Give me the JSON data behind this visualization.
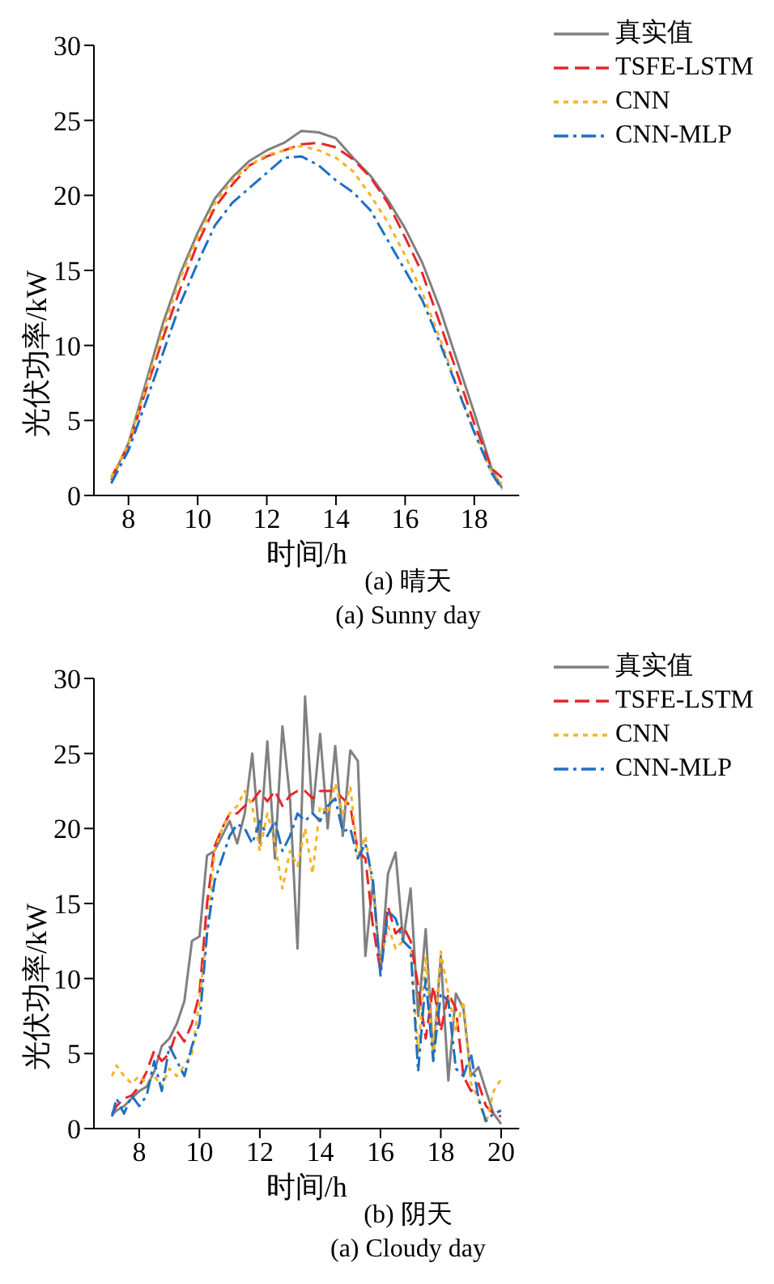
{
  "chart_data": [
    {
      "type": "line",
      "xlabel": "时间/h",
      "ylabel": "光伏功率/kW",
      "annotations": [
        "(a) 晴天",
        "(a) Sunny day"
      ],
      "xlim": [
        7,
        19.3
      ],
      "xticks": [
        8,
        10,
        12,
        14,
        16,
        18
      ],
      "ylim": [
        0,
        30
      ],
      "yticks": [
        0,
        5,
        10,
        15,
        20,
        25,
        30
      ],
      "grid": false,
      "legend": "top right",
      "marker": "none",
      "x": [
        7.5,
        8,
        8.5,
        9,
        9.5,
        10,
        10.5,
        11,
        11.5,
        12,
        12.5,
        13,
        13.5,
        14,
        14.5,
        15,
        15.5,
        16,
        16.5,
        17,
        17.5,
        18,
        18.5,
        18.8
      ],
      "series": [
        {
          "name": "真实值",
          "color": "#808080",
          "line_style": "solid",
          "values": [
            1.0,
            3.5,
            7.5,
            11.5,
            14.8,
            17.5,
            19.8,
            21.2,
            22.3,
            23.0,
            23.5,
            24.3,
            24.2,
            23.8,
            22.5,
            21.3,
            19.7,
            17.8,
            15.5,
            12.5,
            9.0,
            5.5,
            1.8,
            0.5
          ]
        },
        {
          "name": "TSFE-LSTM",
          "color": "#e8262a",
          "line_style": "dashed",
          "values": [
            1.2,
            3.3,
            7.0,
            10.5,
            13.8,
            16.8,
            19.2,
            20.7,
            22.0,
            22.6,
            23.0,
            23.4,
            23.5,
            23.2,
            22.4,
            21.2,
            19.5,
            17.2,
            14.8,
            11.5,
            8.2,
            4.8,
            1.8,
            1.2
          ]
        },
        {
          "name": "CNN",
          "color": "#f5b325",
          "line_style": "dotted",
          "values": [
            1.2,
            3.4,
            7.2,
            11.0,
            14.5,
            17.2,
            19.5,
            21.0,
            22.0,
            22.7,
            23.0,
            23.3,
            23.0,
            22.5,
            21.6,
            20.0,
            18.2,
            16.0,
            13.5,
            10.5,
            7.3,
            4.3,
            1.5,
            0.8
          ]
        },
        {
          "name": "CNN-MLP",
          "color": "#1f6fc4",
          "line_style": "dashdot",
          "values": [
            0.8,
            3.0,
            6.2,
            9.5,
            12.8,
            15.5,
            18.0,
            19.5,
            20.5,
            21.5,
            22.5,
            22.6,
            22.0,
            21.0,
            20.2,
            19.0,
            17.0,
            15.0,
            13.0,
            10.2,
            7.2,
            4.2,
            1.5,
            0.4
          ]
        }
      ]
    },
    {
      "type": "line",
      "xlabel": "时间/h",
      "ylabel": "光伏功率/kW",
      "annotations": [
        "(b) 阴天",
        "(a) Cloudy day"
      ],
      "xlim": [
        6.5,
        20.6
      ],
      "xticks": [
        8,
        10,
        12,
        14,
        16,
        18,
        20
      ],
      "ylim": [
        0,
        30
      ],
      "yticks": [
        0,
        5,
        10,
        15,
        20,
        25,
        30
      ],
      "grid": false,
      "legend": "top right",
      "marker": "none",
      "x": [
        7.1,
        7.25,
        7.5,
        7.75,
        8,
        8.25,
        8.5,
        8.75,
        9,
        9.25,
        9.5,
        9.75,
        10,
        10.25,
        10.5,
        10.75,
        11,
        11.25,
        11.5,
        11.75,
        12,
        12.25,
        12.5,
        12.75,
        13,
        13.25,
        13.5,
        13.75,
        14,
        14.25,
        14.5,
        14.75,
        15,
        15.25,
        15.5,
        15.75,
        16,
        16.25,
        16.5,
        16.75,
        17,
        17.25,
        17.5,
        17.75,
        18,
        18.25,
        18.5,
        18.75,
        19,
        19.25,
        19.5,
        19.75,
        20
      ],
      "series": [
        {
          "name": "真实值",
          "color": "#808080",
          "line_style": "solid",
          "values": [
            0.9,
            1.2,
            1.5,
            2.0,
            2.5,
            2.8,
            3.8,
            5.5,
            6.0,
            7.0,
            8.5,
            12.5,
            12.8,
            18.2,
            18.5,
            19.5,
            20.5,
            19.0,
            21.0,
            25.0,
            19.0,
            25.8,
            18.0,
            26.8,
            22.0,
            12.0,
            28.8,
            21.0,
            26.3,
            20.0,
            25.5,
            19.5,
            25.2,
            24.5,
            11.5,
            16.5,
            10.5,
            17.0,
            18.4,
            12.5,
            16.0,
            7.5,
            13.3,
            4.8,
            11.5,
            3.2,
            9.0,
            8.0,
            3.5,
            4.1,
            2.5,
            1.0,
            0.3
          ]
        },
        {
          "name": "TSFE-LSTM",
          "color": "#e8262a",
          "line_style": "dashed",
          "values": [
            1.0,
            1.5,
            2.0,
            2.2,
            2.8,
            3.8,
            5.2,
            4.5,
            5.0,
            6.5,
            5.8,
            7.0,
            9.0,
            15.0,
            18.8,
            20.0,
            21.0,
            21.0,
            21.5,
            21.8,
            22.5,
            21.8,
            22.5,
            21.5,
            22.2,
            22.5,
            22.5,
            22.0,
            22.5,
            22.5,
            22.5,
            22.0,
            21.5,
            18.5,
            18.0,
            13.5,
            10.5,
            14.8,
            13.0,
            13.5,
            12.5,
            9.5,
            6.0,
            9.5,
            6.5,
            9.0,
            8.0,
            3.5,
            2.5,
            3.0,
            1.5,
            1.0,
            0.8
          ]
        },
        {
          "name": "CNN",
          "color": "#f5b325",
          "line_style": "dotted",
          "values": [
            3.5,
            4.2,
            3.5,
            3.0,
            3.5,
            3.0,
            3.5,
            2.8,
            4.0,
            3.5,
            4.2,
            5.0,
            8.5,
            13.0,
            18.5,
            20.0,
            21.0,
            21.5,
            22.5,
            21.5,
            18.5,
            21.0,
            19.0,
            16.0,
            18.5,
            17.5,
            20.0,
            17.0,
            21.5,
            21.0,
            23.0,
            21.0,
            22.8,
            18.0,
            19.5,
            16.0,
            11.0,
            13.5,
            12.0,
            12.5,
            12.0,
            5.0,
            11.5,
            5.0,
            11.8,
            9.0,
            6.5,
            8.5,
            3.0,
            2.0,
            0.3,
            2.5,
            3.3
          ]
        },
        {
          "name": "CNN-MLP",
          "color": "#1f6fc4",
          "line_style": "dashdot",
          "values": [
            0.8,
            2.0,
            1.0,
            2.2,
            1.5,
            2.2,
            4.5,
            2.5,
            5.5,
            4.5,
            3.5,
            5.5,
            7.0,
            13.0,
            16.5,
            18.0,
            19.5,
            20.3,
            20.0,
            19.0,
            20.5,
            19.5,
            20.5,
            18.5,
            19.5,
            21.0,
            20.5,
            21.0,
            20.5,
            21.5,
            22.0,
            19.8,
            20.0,
            18.0,
            19.0,
            16.5,
            10.2,
            14.5,
            14.0,
            12.5,
            12.0,
            3.8,
            10.0,
            4.5,
            9.0,
            8.5,
            4.0,
            3.5,
            5.0,
            2.0,
            0.5,
            1.0,
            1.2
          ]
        }
      ]
    }
  ]
}
